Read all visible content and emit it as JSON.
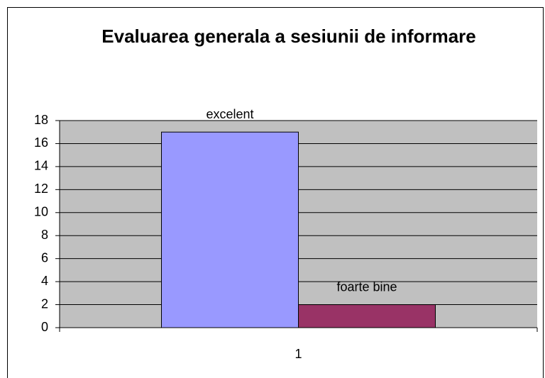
{
  "chart_data": {
    "type": "bar",
    "title": "Evaluarea generala a sesiunii de informare",
    "categories": [
      "1"
    ],
    "series": [
      {
        "name": "excelent",
        "color": "#9999ff",
        "values": [
          17
        ]
      },
      {
        "name": "foarte bine",
        "color": "#993366",
        "values": [
          2
        ]
      }
    ],
    "ylim": [
      0,
      18
    ],
    "yticks": [
      0,
      2,
      4,
      6,
      8,
      10,
      12,
      14,
      16,
      18
    ],
    "grid": true,
    "plot_background": "#c0c0c0"
  }
}
